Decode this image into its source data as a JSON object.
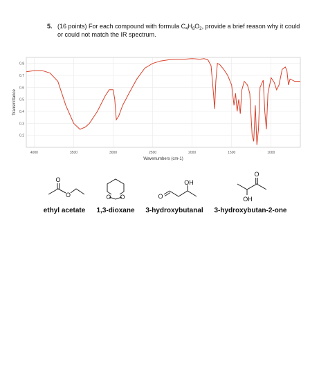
{
  "question": {
    "number": "5.",
    "runs": [
      "(16 points) For each compound with formula C",
      "4",
      "H",
      "8",
      "O",
      "2",
      ", provide a brief reason why it could"
    ],
    "line2": "or could not match the IR spectrum."
  },
  "chart_data": {
    "type": "line",
    "xlabel": "Wavenumbers (cm-1)",
    "ylabel": "Transmittance",
    "color": "#d9412b",
    "grid": true,
    "xlim": [
      4100,
      630
    ],
    "ylim": [
      0.1,
      0.85
    ],
    "xticks": [
      4000,
      3500,
      3000,
      2500,
      2000,
      1500,
      1000
    ],
    "yticks": [
      0.2,
      0.3,
      0.4,
      0.5,
      0.6,
      0.7,
      0.8
    ],
    "x": [
      4100,
      4000,
      3900,
      3800,
      3700,
      3600,
      3500,
      3420,
      3350,
      3300,
      3200,
      3100,
      3050,
      3000,
      2980,
      2960,
      2930,
      2880,
      2800,
      2700,
      2600,
      2500,
      2400,
      2300,
      2200,
      2100,
      2000,
      1900,
      1850,
      1800,
      1760,
      1730,
      1715,
      1700,
      1680,
      1650,
      1600,
      1550,
      1500,
      1470,
      1450,
      1430,
      1410,
      1390,
      1370,
      1340,
      1300,
      1270,
      1240,
      1220,
      1200,
      1180,
      1160,
      1140,
      1100,
      1080,
      1060,
      1040,
      1000,
      960,
      930,
      900,
      860,
      820,
      800,
      780,
      760,
      700,
      630
    ],
    "values": [
      0.73,
      0.74,
      0.74,
      0.72,
      0.65,
      0.45,
      0.3,
      0.25,
      0.27,
      0.3,
      0.4,
      0.53,
      0.58,
      0.58,
      0.5,
      0.33,
      0.36,
      0.45,
      0.55,
      0.67,
      0.76,
      0.8,
      0.82,
      0.83,
      0.835,
      0.835,
      0.84,
      0.835,
      0.84,
      0.83,
      0.78,
      0.55,
      0.42,
      0.65,
      0.8,
      0.79,
      0.75,
      0.7,
      0.62,
      0.45,
      0.55,
      0.4,
      0.5,
      0.38,
      0.58,
      0.65,
      0.62,
      0.55,
      0.2,
      0.15,
      0.45,
      0.12,
      0.25,
      0.6,
      0.66,
      0.4,
      0.25,
      0.55,
      0.68,
      0.64,
      0.58,
      0.62,
      0.75,
      0.77,
      0.74,
      0.62,
      0.67,
      0.65,
      0.65
    ]
  },
  "compounds": [
    {
      "name": "ethyl acetate",
      "atoms": [
        "O",
        "O"
      ]
    },
    {
      "name": "1,3-dioxane",
      "atoms": [
        "O",
        "O"
      ]
    },
    {
      "name": "3-hydroxybutanal",
      "atoms": [
        "OH",
        "O"
      ]
    },
    {
      "name": "3-hydroxybutan-2-one",
      "atoms": [
        "O",
        "OH"
      ]
    }
  ]
}
